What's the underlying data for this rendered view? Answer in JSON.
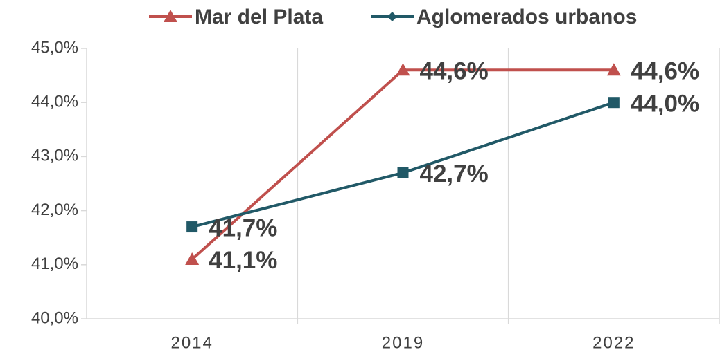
{
  "chart_data": {
    "type": "line",
    "categories": [
      "2014",
      "2019",
      "2022"
    ],
    "series": [
      {
        "name": "Mar del Plata",
        "color": "#c0504d",
        "marker": "triangle",
        "values": [
          41.1,
          44.6,
          44.6
        ],
        "value_labels": [
          "41,1%",
          "44,6%",
          "44,6%"
        ]
      },
      {
        "name": "Aglomerados urbanos",
        "color": "#215967",
        "marker": "square",
        "values": [
          41.7,
          42.7,
          44.0
        ],
        "value_labels": [
          "41,7%",
          "42,7%",
          "44,0%"
        ]
      }
    ],
    "ylim": [
      40,
      45
    ],
    "yticks": [
      {
        "value": 40,
        "label": "40,0%"
      },
      {
        "value": 41,
        "label": "41,0%"
      },
      {
        "value": 42,
        "label": "42,0%"
      },
      {
        "value": 43,
        "label": "43,0%"
      },
      {
        "value": 44,
        "label": "44,0%"
      },
      {
        "value": 45,
        "label": "45,0%"
      }
    ],
    "grid": true,
    "legend": "top"
  }
}
